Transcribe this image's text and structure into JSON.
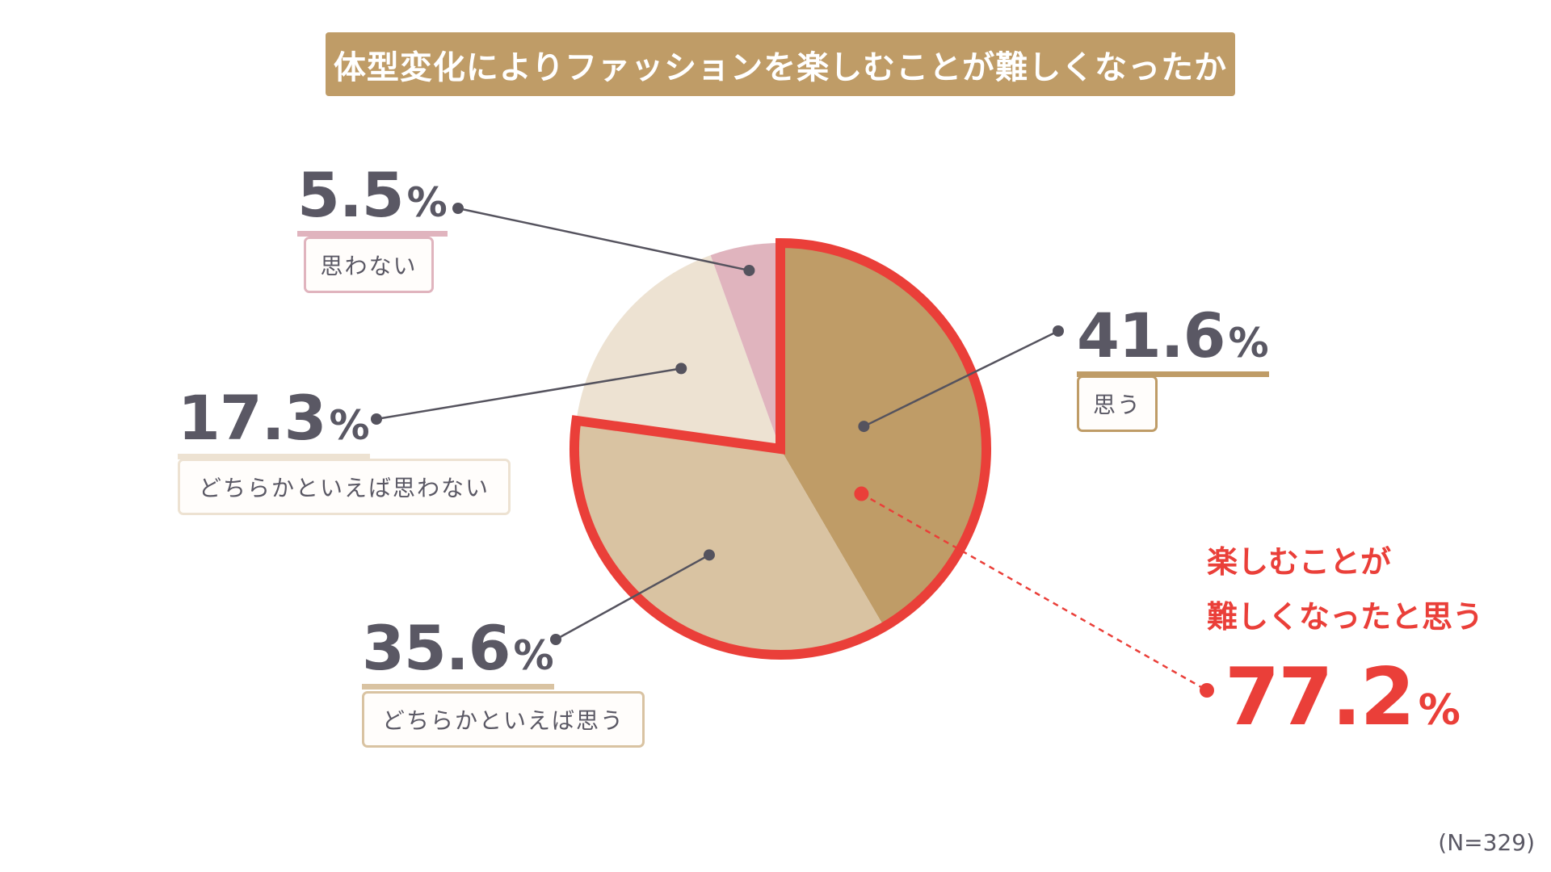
{
  "title": "体型変化によりファッションを楽しむことが難しくなったか",
  "sample_size": "(N=329)",
  "chart_data": {
    "type": "pie",
    "title": "体型変化によりファッションを楽しむことが難しくなったか",
    "unit": "%",
    "slices": [
      {
        "label": "思う",
        "value": 41.6,
        "value_text": "41.6",
        "color": "#bf9c67"
      },
      {
        "label": "どちらかといえば思う",
        "value": 35.6,
        "value_text": "35.6",
        "color": "#d9c3a2"
      },
      {
        "label": "どちらかといえば思わない",
        "value": 17.3,
        "value_text": "17.3",
        "color": "#ede2d2"
      },
      {
        "label": "思わない",
        "value": 5.5,
        "value_text": "5.5",
        "color": "#e0b4be"
      }
    ],
    "highlight": {
      "text_line1": "楽しむことが",
      "text_line2": "難しくなったと思う",
      "value": 77.2,
      "value_text": "77.2",
      "unit": "%",
      "color": "#ea3f39"
    }
  }
}
